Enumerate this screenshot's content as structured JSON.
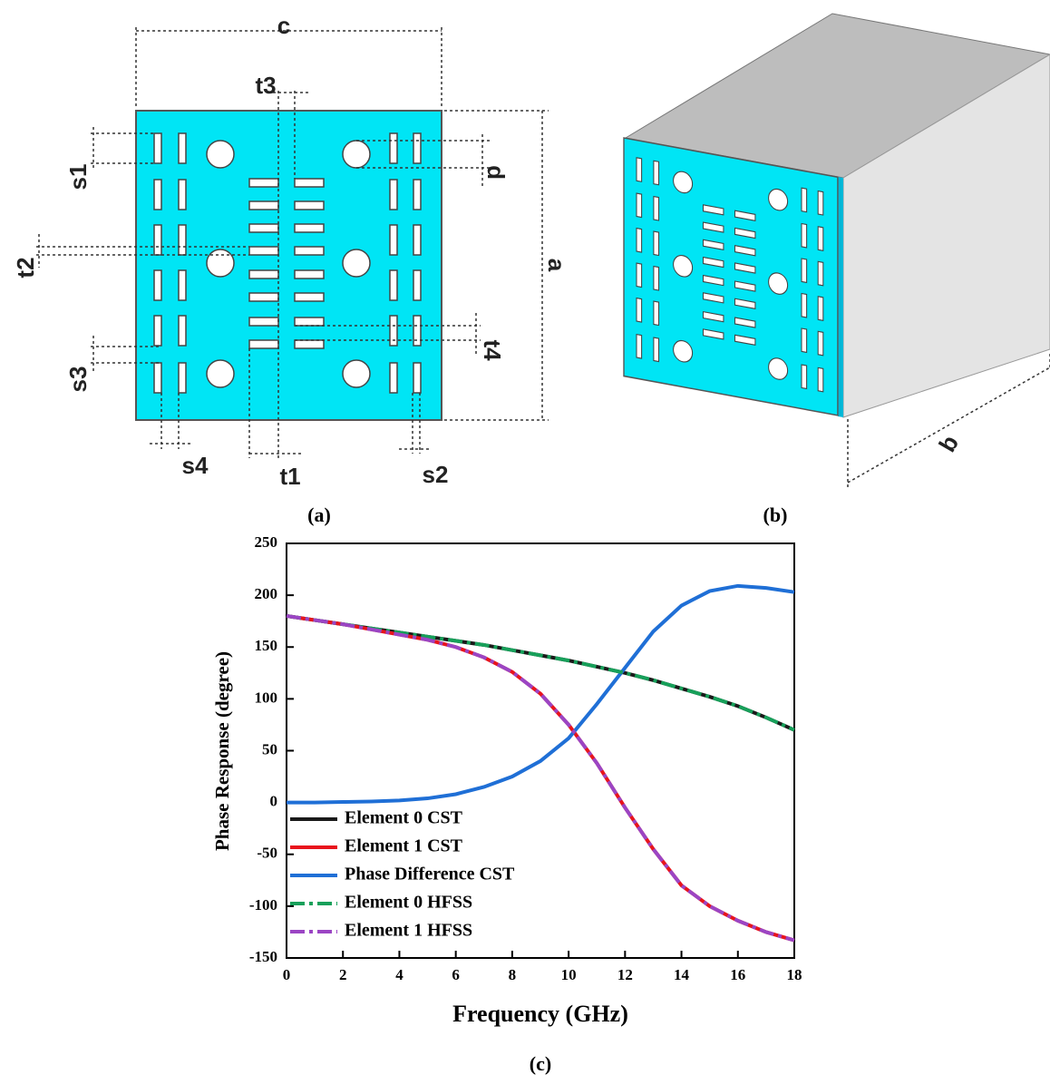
{
  "panel_a": {
    "caption": "(a)",
    "labels": [
      "c",
      "t3",
      "s1",
      "d",
      "t2",
      "a",
      "t4",
      "s3",
      "s4",
      "t1",
      "s2"
    ]
  },
  "panel_b": {
    "caption": "(b)",
    "labels": [
      "b"
    ]
  },
  "chart_data": {
    "type": "line",
    "caption": "(c)",
    "x_label": "Frequency (GHz)",
    "y_label": "Phase Response (degree)",
    "x": [
      0,
      1,
      2,
      3,
      4,
      5,
      6,
      7,
      8,
      9,
      10,
      11,
      12,
      13,
      14,
      15,
      16,
      17,
      18
    ],
    "series": [
      {
        "name": "Element 0 CST",
        "color": "#1a1a1a",
        "style": "solid",
        "values": [
          180,
          176,
          172,
          168,
          164,
          160,
          156,
          152,
          147,
          142,
          137,
          131,
          125,
          118,
          110,
          102,
          93,
          82,
          70
        ]
      },
      {
        "name": "Element 1 CST",
        "color": "#e8141c",
        "style": "solid",
        "values": [
          180,
          176,
          172,
          167,
          162,
          157,
          150,
          140,
          126,
          105,
          75,
          38,
          -5,
          -45,
          -80,
          -100,
          -114,
          -125,
          -133
        ]
      },
      {
        "name": "Phase Difference CST",
        "color": "#1f6fd6",
        "style": "solid",
        "values": [
          0,
          0,
          0.5,
          1,
          2,
          4,
          8,
          15,
          25,
          40,
          62,
          95,
          130,
          165,
          190,
          204,
          209,
          207,
          203
        ]
      },
      {
        "name": "Element 0 HFSS",
        "color": "#17a05a",
        "style": "dash-dot",
        "values": [
          180,
          176,
          172,
          168,
          164,
          160,
          156,
          152,
          147,
          142,
          137,
          131,
          125,
          118,
          110,
          102,
          93,
          82,
          70
        ]
      },
      {
        "name": "Element 1 HFSS",
        "color": "#9b45c4",
        "style": "dash-dot",
        "values": [
          180,
          176,
          172,
          167,
          162,
          157,
          150,
          140,
          126,
          105,
          75,
          38,
          -5,
          -45,
          -80,
          -100,
          -114,
          -125,
          -133
        ]
      }
    ],
    "xlim": [
      0,
      18
    ],
    "xticks": [
      0,
      2,
      4,
      6,
      8,
      10,
      12,
      14,
      16,
      18
    ],
    "ylim": [
      -150,
      250
    ],
    "yticks": [
      -150,
      -100,
      -50,
      0,
      50,
      100,
      150,
      200,
      250
    ],
    "legend": "left",
    "grid": false
  }
}
